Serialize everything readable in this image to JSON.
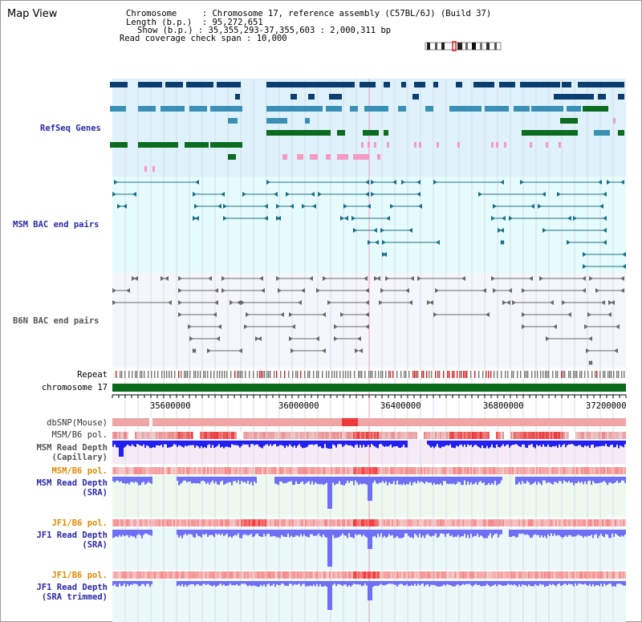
{
  "view": {
    "title": "Map View"
  },
  "info": {
    "chromosome_label": "Chromosome",
    "chromosome_value": "Chromosome 17, reference assembly (C57BL/6J) (Build 37)",
    "length_label": "Length (b.p.)",
    "length_value": "95,272,651",
    "show_label": "Show (b.p.)",
    "show_value": "35,355,293-37,355,603 : 2,000,311 bp",
    "coverage_label": "Read coverage check span",
    "coverage_value": "10,000"
  },
  "tracks": {
    "refseq": "RefSeq Genes",
    "msm_bac": "MSM BAC end pairs",
    "b6n_bac": "B6N BAC end pairs",
    "repeat": "Repeat",
    "chromosome": "chromosome 17",
    "dbsnp": "dbSNP(Mouse)",
    "msm_b6_pol_1": "MSM/B6 pol.",
    "msm_depth_cap_1": "MSM Read Depth",
    "msm_depth_cap_2": "(Capillary)",
    "msm_b6_pol_2": "MSM/B6 pol.",
    "msm_depth_sra_1": "MSM Read Depth",
    "msm_depth_sra_2": "(SRA)",
    "jf1_b6_pol_1": "JF1/B6 pol.",
    "jf1_depth_sra_1": "JF1 Read Depth",
    "jf1_depth_sra_2": "(SRA)",
    "jf1_b6_pol_2": "JF1/B6 pol.",
    "jf1_depth_trim_1": "JF1 Read Depth",
    "jf1_depth_trim_2": "(SRA trimmed)"
  },
  "axis": {
    "ticks": [
      "35600000",
      "36000000",
      "36400000",
      "36800000",
      "37200000"
    ]
  },
  "colors": {
    "refseq_bg": "#dff1fa",
    "msm_bac_bg": "#e6fbfb",
    "b6n_bg": "#f4f6fb",
    "navy_gene": "#0b3d6e",
    "teal_gene": "#3a8fb5",
    "green_gene": "#0b6b1f",
    "pink_gene": "#f59ac2",
    "teal_line": "#1a6f8c",
    "gray_line": "#6a6a6a",
    "chrom_green": "#0a6a1a",
    "pol_red": "#e02020",
    "depth_blue": "#2020f0",
    "depth_light": "#6f6ff5"
  }
}
